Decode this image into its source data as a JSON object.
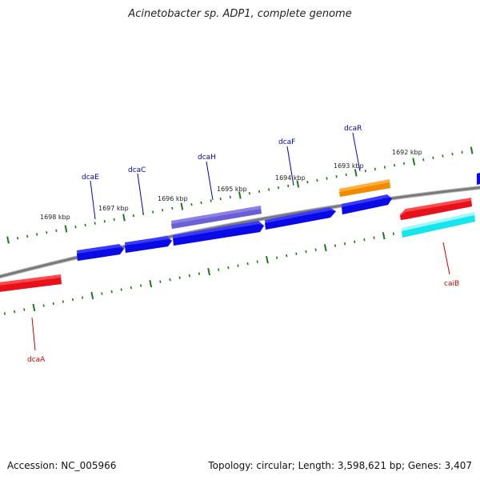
{
  "header": {
    "title": "Acinetobacter sp. ADP1, complete genome"
  },
  "footer": {
    "accession": "Accession: NC_005966",
    "summary": "Topology: circular; Length: 3,598,621 bp; Genes: 3,407"
  },
  "colors": {
    "backbone": "#7a7a7a",
    "tick": "#1b7a1b",
    "gene_blue": "#0a0ae6",
    "gene_purple": "#6b5fd6",
    "gene_orange": "#f08a00",
    "gene_red": "#e8101a",
    "gene_cyan": "#15e6ee",
    "label_blue": "#0000c0",
    "label_red": "#d00000"
  },
  "scale_labels": [
    "1698 kbp",
    "1697 kbp",
    "1696 kbp",
    "1695 kbp",
    "1694 kbp",
    "1693 kbp",
    "1692 kbp"
  ],
  "genes": [
    {
      "name": "dcaA",
      "color": "gene_red"
    },
    {
      "name": "dcaE",
      "color": "gene_blue"
    },
    {
      "name": "dcaC",
      "color": "gene_blue"
    },
    {
      "name": "dcaH",
      "color": "gene_purple"
    },
    {
      "name": "dcaF",
      "color": "gene_blue"
    },
    {
      "name": "dcaR",
      "color": "gene_orange"
    },
    {
      "name": "caiB",
      "color": "gene_red"
    }
  ]
}
